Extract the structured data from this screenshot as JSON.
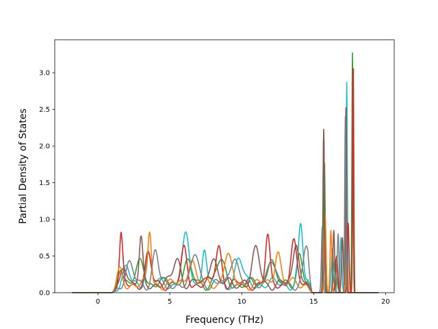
{
  "chart_data": {
    "type": "line",
    "title": "",
    "xlabel": "Frequency (THz)",
    "ylabel": "Partial Density of States",
    "xlim": [
      -3.0,
      20.6
    ],
    "ylim": [
      0.0,
      3.45
    ],
    "xticks": [
      0,
      5,
      10,
      15,
      20
    ],
    "xtick_labels": [
      "0",
      "5",
      "10",
      "15",
      "20"
    ],
    "yticks": [
      0.0,
      0.5,
      1.0,
      1.5,
      2.0,
      2.5,
      3.0
    ],
    "ytick_labels": [
      "0.0",
      "0.5",
      "1.0",
      "1.5",
      "2.0",
      "2.5",
      "3.0"
    ],
    "grid": false,
    "legend": "none",
    "series_peaks": [
      {
        "color": "#2ca02c",
        "peaks": [
          [
            1.5,
            0.3,
            0.2
          ],
          [
            3.0,
            0.32,
            0.25
          ],
          [
            6.2,
            0.28,
            0.3
          ],
          [
            8.5,
            0.3,
            0.3
          ],
          [
            12.0,
            0.35,
            0.25
          ],
          [
            14.0,
            0.4,
            0.2
          ],
          [
            15.75,
            1.8,
            0.05
          ],
          [
            16.5,
            0.45,
            0.1
          ],
          [
            17.3,
            1.5,
            0.05
          ],
          [
            17.7,
            3.27,
            0.04
          ]
        ]
      },
      {
        "color": "#17becf",
        "peaks": [
          [
            2.0,
            0.2,
            0.2
          ],
          [
            3.5,
            0.4,
            0.2
          ],
          [
            6.1,
            0.62,
            0.25
          ],
          [
            7.4,
            0.54,
            0.15
          ],
          [
            9.8,
            0.35,
            0.25
          ],
          [
            14.1,
            0.79,
            0.15
          ],
          [
            15.7,
            2.2,
            0.05
          ],
          [
            16.3,
            0.6,
            0.08
          ],
          [
            16.9,
            0.75,
            0.06
          ],
          [
            17.3,
            2.87,
            0.04
          ]
        ]
      },
      {
        "color": "#d62728",
        "peaks": [
          [
            1.6,
            0.62,
            0.12
          ],
          [
            3.5,
            0.38,
            0.2
          ],
          [
            6.0,
            0.45,
            0.2
          ],
          [
            8.4,
            0.52,
            0.2
          ],
          [
            11.8,
            0.62,
            0.15
          ],
          [
            13.6,
            0.55,
            0.2
          ],
          [
            15.8,
            0.95,
            0.06
          ],
          [
            16.6,
            0.5,
            0.08
          ],
          [
            17.4,
            0.95,
            0.06
          ],
          [
            17.75,
            3.15,
            0.04
          ]
        ]
      },
      {
        "color": "#ff7f0e",
        "peaks": [
          [
            1.4,
            0.25,
            0.2
          ],
          [
            3.6,
            0.71,
            0.12
          ],
          [
            6.5,
            0.35,
            0.25
          ],
          [
            9.0,
            0.4,
            0.25
          ],
          [
            12.5,
            0.48,
            0.2
          ],
          [
            15.8,
            1.07,
            0.06
          ],
          [
            16.2,
            0.85,
            0.06
          ],
          [
            17.3,
            0.5,
            0.06
          ]
        ]
      },
      {
        "color": "#8c564b",
        "peaks": [
          [
            1.8,
            0.3,
            0.2
          ],
          [
            3.0,
            0.58,
            0.12
          ],
          [
            5.5,
            0.35,
            0.25
          ],
          [
            8.0,
            0.4,
            0.25
          ],
          [
            11.0,
            0.45,
            0.25
          ],
          [
            13.8,
            0.6,
            0.2
          ],
          [
            15.7,
            2.23,
            0.05
          ],
          [
            16.4,
            0.85,
            0.06
          ],
          [
            17.0,
            0.75,
            0.06
          ],
          [
            17.25,
            2.6,
            0.04
          ]
        ]
      },
      {
        "color": "#7f7f7f",
        "peaks": [
          [
            2.2,
            0.25,
            0.25
          ],
          [
            4.0,
            0.45,
            0.2
          ],
          [
            6.8,
            0.4,
            0.25
          ],
          [
            9.5,
            0.42,
            0.25
          ],
          [
            12.0,
            0.35,
            0.25
          ],
          [
            14.5,
            0.5,
            0.2
          ],
          [
            15.6,
            0.9,
            0.06
          ],
          [
            16.7,
            0.8,
            0.06
          ],
          [
            17.2,
            2.4,
            0.04
          ]
        ]
      }
    ]
  }
}
